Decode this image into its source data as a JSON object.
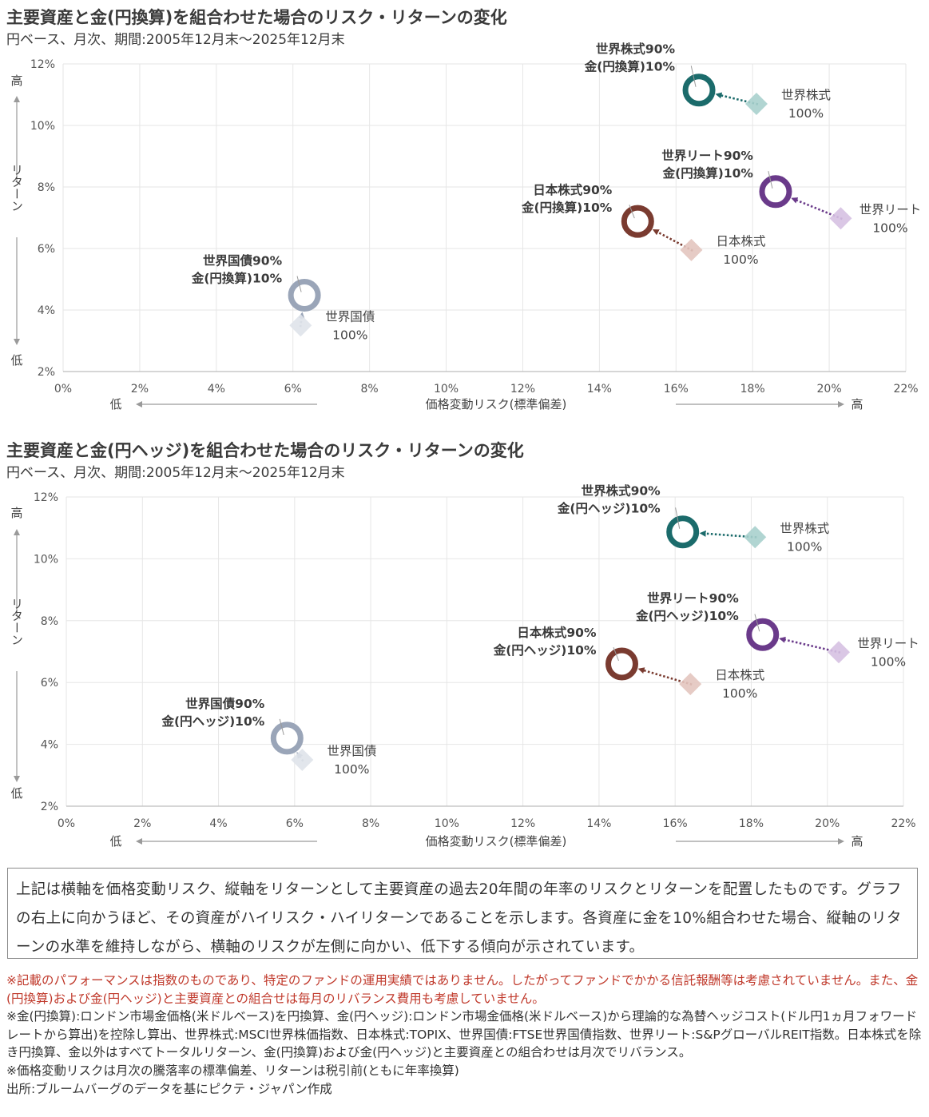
{
  "charts": [
    {
      "title": "主要資産と金(円換算)を組合わせた場合のリスク・リターンの変化",
      "subtitle": "円ベース、月次、期間:2005年12月末～2025年12月末"
    },
    {
      "title": "主要資産と金(円ヘッジ)を組合わせた場合のリスク・リターンの変化",
      "subtitle": "円ベース、月次、期間:2005年12月末～2025年12月末"
    }
  ],
  "colors": {
    "world_equity": "#1b6b6b",
    "world_reit": "#6a3a8a",
    "japan_equity": "#7a3b30",
    "world_bond": "#9aa5b8",
    "world_equity_light": "#a9d0cd",
    "world_reit_light": "#d6c1e2",
    "japan_equity_light": "#e3c5bf",
    "world_bond_light": "#dfe3ea",
    "grid": "#e6e6e6"
  },
  "chart_data": [
    {
      "type": "scatter",
      "title": "主要資産と金(円換算)を組合わせた場合のリスク・リターンの変化",
      "xlabel": "価格変動リスク(標準偏差)",
      "ylabel": "リターン",
      "x_low": "低",
      "x_high": "高",
      "y_low": "低",
      "y_high": "高",
      "xlim": [
        0,
        22
      ],
      "ylim": [
        2,
        12
      ],
      "xticks": [
        "0%",
        "2%",
        "4%",
        "6%",
        "8%",
        "10%",
        "12%",
        "14%",
        "16%",
        "18%",
        "20%",
        "22%"
      ],
      "yticks": [
        "2%",
        "4%",
        "6%",
        "8%",
        "10%",
        "12%"
      ],
      "pairs": [
        {
          "key": "world_equity",
          "asset": {
            "label1": "世界株式",
            "label2": "100%",
            "x": 18.1,
            "y": 10.7
          },
          "mix": {
            "label1": "世界株式90%",
            "label2": "金(円換算)10%",
            "x": 16.6,
            "y": 11.15
          }
        },
        {
          "key": "world_reit",
          "asset": {
            "label1": "世界リート",
            "label2": "100%",
            "x": 20.3,
            "y": 6.98
          },
          "mix": {
            "label1": "世界リート90%",
            "label2": "金(円換算)10%",
            "x": 18.6,
            "y": 7.85
          }
        },
        {
          "key": "japan_equity",
          "asset": {
            "label1": "日本株式",
            "label2": "100%",
            "x": 16.4,
            "y": 5.95
          },
          "mix": {
            "label1": "日本株式90%",
            "label2": "金(円換算)10%",
            "x": 15.0,
            "y": 6.88
          }
        },
        {
          "key": "world_bond",
          "asset": {
            "label1": "世界国債",
            "label2": "100%",
            "x": 6.2,
            "y": 3.5
          },
          "mix": {
            "label1": "世界国債90%",
            "label2": "金(円換算)10%",
            "x": 6.3,
            "y": 4.48
          }
        }
      ]
    },
    {
      "type": "scatter",
      "title": "主要資産と金(円ヘッジ)を組合わせた場合のリスク・リターンの変化",
      "xlabel": "価格変動リスク(標準偏差)",
      "ylabel": "リターン",
      "x_low": "低",
      "x_high": "高",
      "y_low": "低",
      "y_high": "高",
      "xlim": [
        0,
        22
      ],
      "ylim": [
        2,
        12
      ],
      "xticks": [
        "0%",
        "2%",
        "4%",
        "6%",
        "8%",
        "10%",
        "12%",
        "14%",
        "16%",
        "18%",
        "20%",
        "22%"
      ],
      "yticks": [
        "2%",
        "4%",
        "6%",
        "8%",
        "10%",
        "12%"
      ],
      "pairs": [
        {
          "key": "world_equity",
          "asset": {
            "label1": "世界株式",
            "label2": "100%",
            "x": 18.1,
            "y": 10.7
          },
          "mix": {
            "label1": "世界株式90%",
            "label2": "金(円ヘッジ)10%",
            "x": 16.2,
            "y": 10.87
          }
        },
        {
          "key": "world_reit",
          "asset": {
            "label1": "世界リート",
            "label2": "100%",
            "x": 20.3,
            "y": 6.98
          },
          "mix": {
            "label1": "世界リート90%",
            "label2": "金(円ヘッジ)10%",
            "x": 18.3,
            "y": 7.55
          }
        },
        {
          "key": "japan_equity",
          "asset": {
            "label1": "日本株式",
            "label2": "100%",
            "x": 16.4,
            "y": 5.95
          },
          "mix": {
            "label1": "日本株式90%",
            "label2": "金(円ヘッジ)10%",
            "x": 14.6,
            "y": 6.6
          }
        },
        {
          "key": "world_bond",
          "asset": {
            "label1": "世界国債",
            "label2": "100%",
            "x": 6.2,
            "y": 3.5
          },
          "mix": {
            "label1": "世界国債90%",
            "label2": "金(円ヘッジ)10%",
            "x": 5.8,
            "y": 4.2
          }
        }
      ]
    }
  ],
  "explanation": "上記は横軸を価格変動リスク、縦軸をリターンとして主要資産の過去20年間の年率のリスクとリターンを配置したものです。グラフの右上に向かうほど、その資産がハイリスク・ハイリターンであることを示します。各資産に金を10%組合わせた場合、縦軸のリターンの水準を維持しながら、横軸のリスクが左側に向かい、低下する傾向が示されています。",
  "notes": {
    "warning": "※記載のパフォーマンスは指数のものであり、特定のファンドの運用実績ではありません。したがってファンドでかかる信託報酬等は考慮されていません。また、金(円換算)および金(円ヘッジ)と主要資産との組合せは毎月のリバランス費用も考慮していません。",
    "index": "※金(円換算):ロンドン市場金価格(米ドルベース)を円換算、金(円ヘッジ):ロンドン市場金価格(米ドルベース)から理論的な為替ヘッジコスト(ドル円1ヵ月フォワードレートから算出)を控除し算出、世界株式:MSCI世界株価指数、日本株式:TOPIX、世界国債:FTSE世界国債指数、世界リート:S&PグローバルREIT指数。日本株式を除き円換算、金以外はすべてトータルリターン、金(円換算)および金(円ヘッジ)と主要資産との組合わせは月次でリバランス。",
    "risk": "※価格変動リスクは月次の騰落率の標準偏差、リターンは税引前(ともに年率換算)",
    "source": "出所:ブルームバーグのデータを基にピクテ・ジャパン作成"
  }
}
